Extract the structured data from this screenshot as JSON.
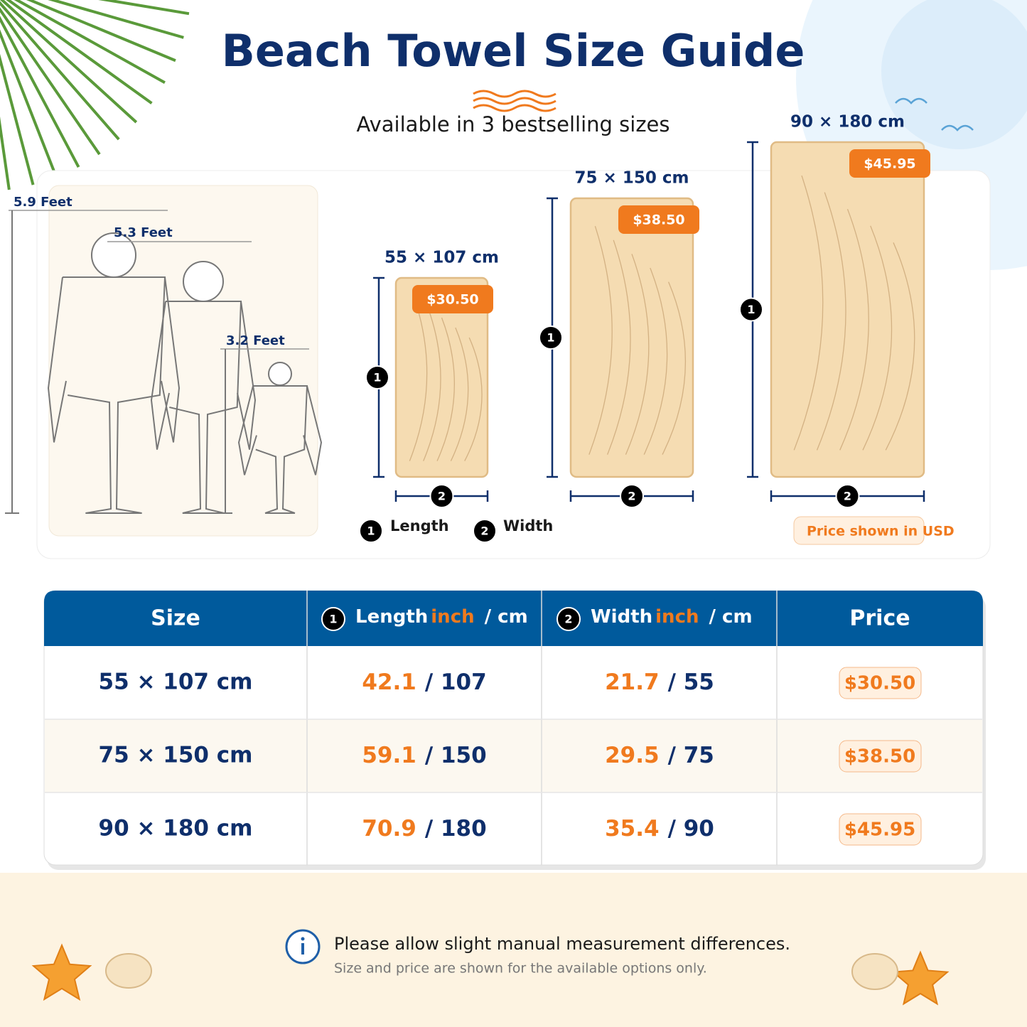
{
  "header": {
    "title": "Beach Towel Size Guide",
    "subtitle": "Available in 3 bestselling sizes"
  },
  "markers": {
    "length": "1",
    "width": "2"
  },
  "people": [
    {
      "label": "5.9 Feet"
    },
    {
      "label": "5.3 Feet"
    },
    {
      "label": "3.2 Feet"
    }
  ],
  "towels": [
    {
      "size": "55 × 107 cm",
      "price": "$30.50"
    },
    {
      "size": "75 × 150 cm",
      "price": "$38.50"
    },
    {
      "size": "90 × 180 cm",
      "price": "$45.95"
    }
  ],
  "legend": {
    "length": "Length",
    "width": "Width"
  },
  "price_note": "Price shown in USD",
  "table": {
    "columns": {
      "size": "Size",
      "length": {
        "label": "Length",
        "inch": "inch",
        "cm": "/ cm"
      },
      "width": {
        "label": "Width",
        "inch": "inch",
        "cm": "/ cm"
      },
      "price": "Price"
    },
    "rows": [
      {
        "size": "55 × 107 cm",
        "length": {
          "inch": "42.1",
          "cm": "/ 107"
        },
        "width": {
          "inch": "21.7",
          "cm": "/ 55"
        },
        "price": "$30.50"
      },
      {
        "size": "75 × 150 cm",
        "length": {
          "inch": "59.1",
          "cm": "/ 150"
        },
        "width": {
          "inch": "29.5",
          "cm": "/ 75"
        },
        "price": "$38.50"
      },
      {
        "size": "90 × 180 cm",
        "length": {
          "inch": "70.9",
          "cm": "/ 180"
        },
        "width": {
          "inch": "35.4",
          "cm": "/ 90"
        },
        "price": "$45.95"
      }
    ]
  },
  "footer": {
    "note": "Please allow slight manual measurement differences.",
    "subnote": "Size and price are shown for the available options only."
  }
}
